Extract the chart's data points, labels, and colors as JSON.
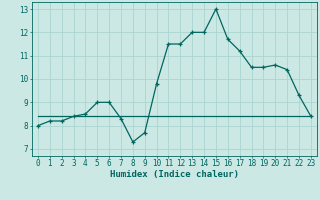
{
  "xlabel": "Humidex (Indice chaleur)",
  "ylabel": "",
  "bg_color": "#cce8e4",
  "grid_color": "#aad4d0",
  "line_color": "#006660",
  "xlim": [
    -0.5,
    23.5
  ],
  "ylim": [
    6.7,
    13.3
  ],
  "xticks": [
    0,
    1,
    2,
    3,
    4,
    5,
    6,
    7,
    8,
    9,
    10,
    11,
    12,
    13,
    14,
    15,
    16,
    17,
    18,
    19,
    20,
    21,
    22,
    23
  ],
  "yticks": [
    7,
    8,
    9,
    10,
    11,
    12,
    13
  ],
  "line1_x": [
    0,
    1,
    2,
    3,
    4,
    5,
    6,
    7,
    8,
    9,
    10,
    11,
    12,
    13,
    14,
    15,
    16,
    17,
    18,
    19,
    20,
    21,
    22,
    23
  ],
  "line1_y": [
    8.0,
    8.2,
    8.2,
    8.4,
    8.5,
    9.0,
    9.0,
    8.3,
    7.3,
    7.7,
    9.8,
    11.5,
    11.5,
    12.0,
    12.0,
    13.0,
    11.7,
    11.2,
    10.5,
    10.5,
    10.6,
    10.4,
    9.3,
    8.4
  ],
  "line2_x": [
    0,
    23
  ],
  "line2_y": [
    8.4,
    8.4
  ],
  "figsize": [
    3.2,
    2.0
  ],
  "dpi": 100,
  "tick_fontsize": 5.5,
  "xlabel_fontsize": 6.5
}
